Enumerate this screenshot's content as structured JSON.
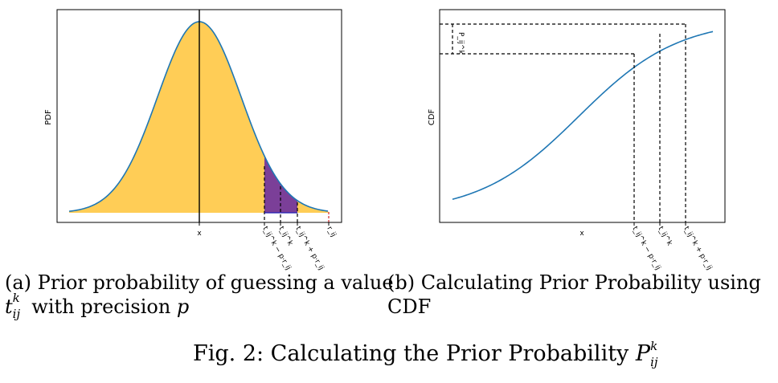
{
  "left_panel": {
    "ylabel": "PDF",
    "xlabel": "x",
    "ticks": [
      "t_ij^k − p·r_ij",
      "t_ij^k",
      "t_ij^k + p·r_ij",
      "r_ij"
    ],
    "colors": {
      "curve": "#1f77b4",
      "fill": "#ffcd56",
      "region": "#7b3f98",
      "marker": "#d62728"
    }
  },
  "right_panel": {
    "ylabel": "CDF",
    "xlabel": "x",
    "bracket_label": "P_ij^k",
    "ticks": [
      "t_ij^k − p·r_ij",
      "t_ij^k",
      "t_ij^k + p·r_ij"
    ],
    "colors": {
      "curve": "#1f77b4"
    }
  },
  "captions": {
    "a_label": "(a) Prior probability of guessing a value",
    "a_var": "t",
    "a_sup": "k",
    "a_sub": "ij",
    "a_rest": " with precision ",
    "a_p": "p",
    "b_line1": "(b) Calculating Prior Probability using",
    "b_line2": "CDF",
    "fig_prefix": "Fig. 2: Calculating the Prior Probability ",
    "fig_var": "P",
    "fig_sup": "k",
    "fig_sub": "ij"
  }
}
